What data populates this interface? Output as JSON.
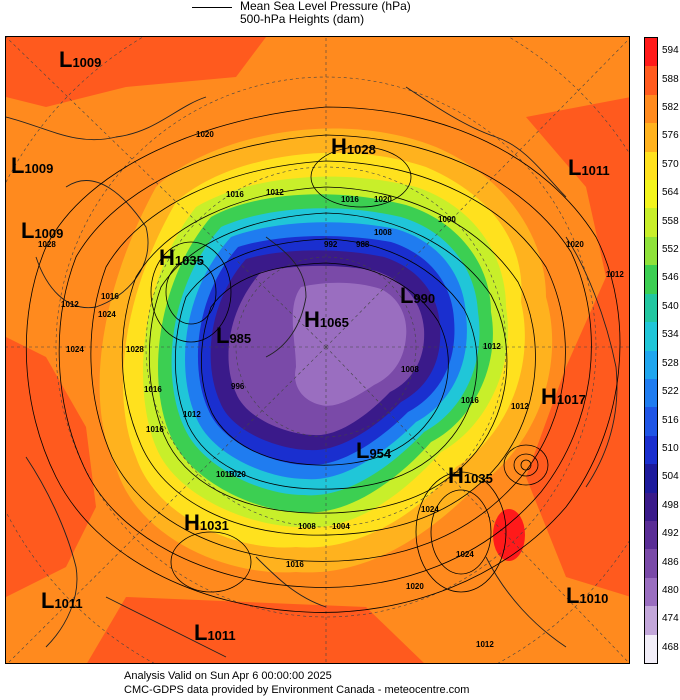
{
  "legend": {
    "mslp": "Mean Sea Level Pressure (hPa)",
    "heights": "500-hPa Heights (dam)"
  },
  "centers": [
    {
      "type": "L",
      "value": "1009"
    },
    {
      "type": "L",
      "value": "1009"
    },
    {
      "type": "L",
      "value": "1009"
    },
    {
      "type": "H",
      "value": "1028"
    },
    {
      "type": "L",
      "value": "1011"
    },
    {
      "type": "H",
      "value": "1035"
    },
    {
      "type": "L",
      "value": "990"
    },
    {
      "type": "H",
      "value": "1065"
    },
    {
      "type": "L",
      "value": "985"
    },
    {
      "type": "H",
      "value": "1017"
    },
    {
      "type": "L",
      "value": "954"
    },
    {
      "type": "H",
      "value": "1035"
    },
    {
      "type": "H",
      "value": "1031"
    },
    {
      "type": "L",
      "value": "1011"
    },
    {
      "type": "L",
      "value": "1010"
    },
    {
      "type": "L",
      "value": "1011"
    }
  ],
  "isobar_labels": [
    "1020",
    "1016",
    "1012",
    "1016",
    "1020",
    "1008",
    "1028",
    "1024",
    "1016",
    "1012",
    "1012",
    "1020",
    "1024",
    "1028",
    "1016",
    "1016",
    "1012",
    "1004",
    "1008",
    "1016",
    "1020",
    "1024",
    "1012",
    "1016",
    "1012",
    "1016",
    "1020",
    "1024",
    "1012",
    "1008",
    "1000",
    "996",
    "992",
    "988"
  ],
  "colorbar": {
    "labels": [
      "594",
      "588",
      "582",
      "576",
      "570",
      "564",
      "558",
      "552",
      "546",
      "540",
      "534",
      "528",
      "522",
      "516",
      "510",
      "504",
      "498",
      "492",
      "486",
      "480",
      "474",
      "468"
    ],
    "colors": [
      "#ff1a1a",
      "#ff5a1e",
      "#ff8a1e",
      "#ffb21e",
      "#ffe11e",
      "#f3f51e",
      "#c8ef2a",
      "#8fe23a",
      "#3ccf52",
      "#22c7a0",
      "#20c6d8",
      "#1fa6ef",
      "#1f7cf0",
      "#1f55e6",
      "#1a2fcf",
      "#1d1a9c",
      "#3a1a8a",
      "#5a2d96",
      "#7a4aa8",
      "#9a6ec0",
      "#c3a7da",
      "#f2eef8"
    ]
  },
  "footer": {
    "line1": "Analysis Valid on Sun Apr  6 00:00:00 2025",
    "line2": "CMC-GDPS data provided by Environment Canada - meteocentre.com"
  }
}
